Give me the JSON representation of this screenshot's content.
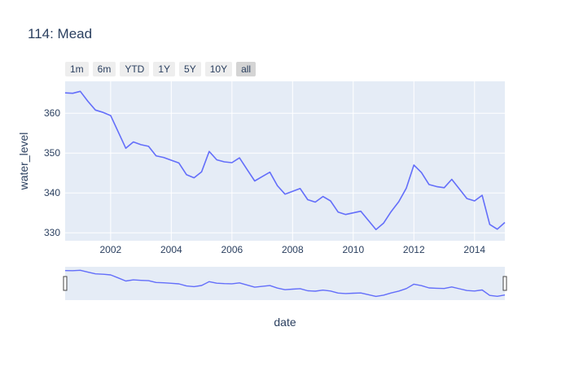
{
  "title": "114: Mead",
  "range_buttons": [
    {
      "label": "1m",
      "active": false
    },
    {
      "label": "6m",
      "active": false
    },
    {
      "label": "YTD",
      "active": false
    },
    {
      "label": "1Y",
      "active": false
    },
    {
      "label": "5Y",
      "active": false
    },
    {
      "label": "10Y",
      "active": false
    },
    {
      "label": "all",
      "active": true
    }
  ],
  "colors": {
    "line": "#636efa",
    "plot_bg": "#e5ecf6",
    "grid": "#ffffff",
    "text": "#2a3f5f",
    "slider_bg": "#e5ecf6"
  },
  "chart_data": {
    "type": "line",
    "title": "114: Mead",
    "xlabel": "date",
    "ylabel": "water_level",
    "x_range": [
      "2000-07-01",
      "2015-01-01"
    ],
    "ylim": [
      328,
      368
    ],
    "x_ticks": [
      "2002",
      "2004",
      "2006",
      "2008",
      "2010",
      "2012",
      "2014"
    ],
    "y_ticks": [
      330,
      340,
      350,
      360
    ],
    "grid": true,
    "has_range_slider": true,
    "series": [
      {
        "x": [
          "2000-07",
          "2000-10",
          "2001-01",
          "2001-04",
          "2001-07",
          "2001-10",
          "2002-01",
          "2002-04",
          "2002-07",
          "2002-10",
          "2003-01",
          "2003-04",
          "2003-07",
          "2003-10",
          "2004-01",
          "2004-04",
          "2004-07",
          "2004-10",
          "2005-01",
          "2005-04",
          "2005-07",
          "2005-10",
          "2006-01",
          "2006-04",
          "2006-07",
          "2006-10",
          "2007-01",
          "2007-04",
          "2007-07",
          "2007-10",
          "2008-01",
          "2008-04",
          "2008-07",
          "2008-10",
          "2009-01",
          "2009-04",
          "2009-07",
          "2009-10",
          "2010-01",
          "2010-04",
          "2010-07",
          "2010-10",
          "2011-01",
          "2011-04",
          "2011-07",
          "2011-10",
          "2012-01",
          "2012-04",
          "2012-07",
          "2012-10",
          "2013-01",
          "2013-04",
          "2013-07",
          "2013-10",
          "2014-01",
          "2014-04",
          "2014-07",
          "2014-10",
          "2015-01"
        ],
        "y": [
          365.1,
          365.0,
          365.5,
          363.0,
          360.8,
          360.2,
          359.4,
          355.3,
          351.2,
          352.8,
          352.1,
          351.7,
          349.3,
          348.9,
          348.2,
          347.5,
          344.6,
          343.8,
          345.3,
          350.4,
          348.3,
          347.8,
          347.6,
          348.8,
          345.9,
          343.0,
          344.1,
          345.2,
          341.8,
          339.7,
          340.4,
          341.1,
          338.3,
          337.7,
          339.1,
          338.0,
          335.2,
          334.6,
          335.0,
          335.4,
          333.1,
          330.8,
          332.4,
          335.3,
          337.8,
          341.2,
          347.0,
          345.1,
          342.1,
          341.6,
          341.3,
          343.4,
          341.0,
          338.6,
          338.0,
          339.4,
          332.1,
          330.9,
          332.6
        ]
      }
    ]
  }
}
